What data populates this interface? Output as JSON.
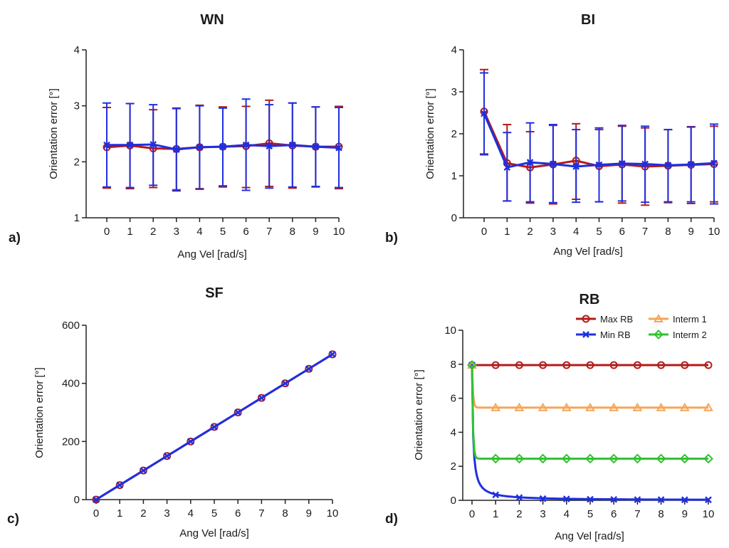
{
  "figure": {
    "colors": {
      "red": "#b31b1b",
      "blue": "#1f2fe0",
      "orange": "#f5a55a",
      "green": "#33c233",
      "axis": "#222222"
    }
  },
  "chart_data": [
    {
      "id": "a",
      "panel_label": "a)",
      "type": "line",
      "title": "WN",
      "xlabel": "Ang Vel [rad/s]",
      "ylabel": "Orientation error [°]",
      "x": [
        0,
        1,
        2,
        3,
        4,
        5,
        6,
        7,
        8,
        9,
        10
      ],
      "xlim": [
        -1,
        10
      ],
      "ylim": [
        1,
        4
      ],
      "yticks": [
        1,
        2,
        3,
        4
      ],
      "error_bars": true,
      "series": [
        {
          "name": "red",
          "color": "#b31b1b",
          "marker": "circle",
          "values": [
            2.26,
            2.29,
            2.24,
            2.23,
            2.26,
            2.27,
            2.28,
            2.33,
            2.29,
            2.27,
            2.27
          ],
          "err_low": [
            1.53,
            1.52,
            1.54,
            1.5,
            1.52,
            1.55,
            1.54,
            1.56,
            1.53,
            1.55,
            1.52
          ],
          "err_high": [
            2.97,
            3.04,
            2.93,
            2.96,
            3.01,
            2.98,
            2.99,
            3.1,
            3.05,
            2.98,
            2.99
          ]
        },
        {
          "name": "blue",
          "color": "#1f2fe0",
          "marker": "x",
          "values": [
            2.3,
            2.3,
            2.31,
            2.22,
            2.26,
            2.27,
            2.3,
            2.28,
            2.3,
            2.27,
            2.25
          ],
          "err_low": [
            1.55,
            1.54,
            1.58,
            1.48,
            1.51,
            1.57,
            1.49,
            1.53,
            1.55,
            1.56,
            1.54
          ],
          "err_high": [
            3.05,
            3.04,
            3.02,
            2.95,
            3.0,
            2.96,
            3.12,
            3.02,
            3.05,
            2.98,
            2.97
          ]
        }
      ]
    },
    {
      "id": "b",
      "panel_label": "b)",
      "type": "line",
      "title": "BI",
      "xlabel": "Ang Vel [rad/s]",
      "ylabel": "Orientation error [°]",
      "x": [
        0,
        1,
        2,
        3,
        4,
        5,
        6,
        7,
        8,
        9,
        10
      ],
      "xlim": [
        -1,
        10
      ],
      "ylim": [
        0,
        4
      ],
      "yticks": [
        0,
        1,
        2,
        3,
        4
      ],
      "error_bars": true,
      "series": [
        {
          "name": "red",
          "color": "#b31b1b",
          "marker": "circle",
          "values": [
            2.53,
            1.3,
            1.2,
            1.27,
            1.36,
            1.23,
            1.27,
            1.22,
            1.24,
            1.26,
            1.28
          ],
          "err_low": [
            1.52,
            0.4,
            0.35,
            0.33,
            0.44,
            0.38,
            0.35,
            0.3,
            0.36,
            0.34,
            0.38
          ],
          "err_high": [
            3.53,
            2.22,
            2.05,
            2.2,
            2.24,
            2.1,
            2.18,
            2.14,
            2.1,
            2.17,
            2.18
          ]
        },
        {
          "name": "blue",
          "color": "#1f2fe0",
          "marker": "x",
          "values": [
            2.48,
            1.2,
            1.32,
            1.28,
            1.22,
            1.26,
            1.29,
            1.28,
            1.25,
            1.27,
            1.3
          ],
          "err_low": [
            1.5,
            0.4,
            0.38,
            0.36,
            0.37,
            0.38,
            0.4,
            0.37,
            0.38,
            0.38,
            0.33
          ],
          "err_high": [
            3.45,
            2.03,
            2.26,
            2.22,
            2.1,
            2.14,
            2.2,
            2.18,
            2.1,
            2.16,
            2.23
          ]
        }
      ]
    },
    {
      "id": "c",
      "panel_label": "c)",
      "type": "line",
      "title": "SF",
      "xlabel": "Ang Vel [rad/s]",
      "ylabel": "Orientation error [°]",
      "x": [
        0,
        1,
        2,
        3,
        4,
        5,
        6,
        7,
        8,
        9,
        10
      ],
      "xlim": [
        0,
        10
      ],
      "ylim": [
        0,
        600
      ],
      "yticks": [
        0,
        200,
        400,
        600
      ],
      "error_bars": false,
      "series": [
        {
          "name": "red",
          "color": "#b31b1b",
          "marker": "circle",
          "values": [
            0,
            50,
            100,
            150,
            200,
            250,
            300,
            350,
            400,
            450,
            500
          ]
        },
        {
          "name": "blue",
          "color": "#1f2fe0",
          "marker": "x",
          "values": [
            0,
            50,
            100,
            150,
            200,
            250,
            300,
            350,
            400,
            450,
            500
          ]
        }
      ]
    },
    {
      "id": "d",
      "panel_label": "d)",
      "type": "line",
      "title": "RB",
      "xlabel": "Ang Vel [rad/s]",
      "ylabel": "Orientation error [°]",
      "x": [
        0,
        1,
        2,
        3,
        4,
        5,
        6,
        7,
        8,
        9,
        10
      ],
      "xlim": [
        0,
        10
      ],
      "ylim": [
        0,
        10
      ],
      "yticks": [
        0,
        2,
        4,
        6,
        8,
        10
      ],
      "error_bars": false,
      "legend_position": "top-right",
      "series": [
        {
          "name": "Max RB",
          "color": "#b31b1b",
          "marker": "circle",
          "asymptote": 7.95,
          "start": 7.95,
          "rate": 1,
          "values": [
            7.95,
            7.95,
            7.95,
            7.95,
            7.95,
            7.95,
            7.95,
            7.95,
            7.95,
            7.95,
            7.95
          ]
        },
        {
          "name": "Min RB",
          "color": "#1f2fe0",
          "marker": "x",
          "asymptote": 0.0,
          "start": 7.95,
          "rate": 1.1,
          "decay": "inverse",
          "values": [
            7.95,
            0.32,
            0.16,
            0.1,
            0.08,
            0.06,
            0.05,
            0.04,
            0.04,
            0.03,
            0.03
          ]
        },
        {
          "name": "Interm 1",
          "color": "#f5a55a",
          "marker": "triangle",
          "asymptote": 5.45,
          "start": 7.95,
          "rate": 25,
          "values": [
            7.95,
            5.45,
            5.45,
            5.45,
            5.45,
            5.45,
            5.45,
            5.45,
            5.45,
            5.45,
            5.45
          ]
        },
        {
          "name": "Interm 2",
          "color": "#33c233",
          "marker": "diamond",
          "asymptote": 2.45,
          "start": 7.95,
          "rate": 25,
          "values": [
            7.95,
            2.45,
            2.45,
            2.45,
            2.45,
            2.45,
            2.45,
            2.45,
            2.45,
            2.45,
            2.45
          ]
        }
      ]
    }
  ]
}
